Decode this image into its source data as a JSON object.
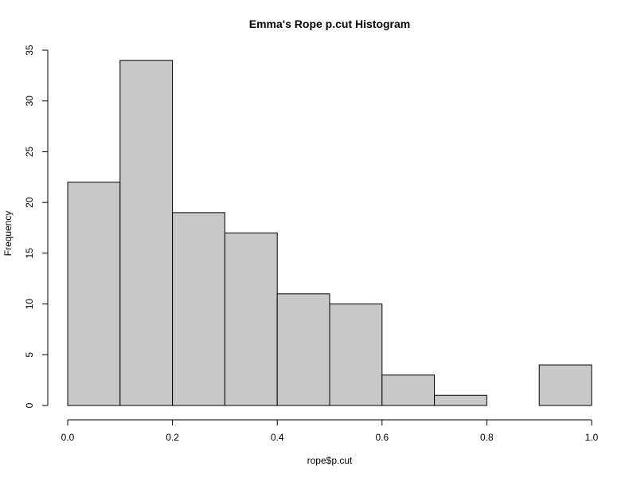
{
  "chart_data": {
    "type": "bar",
    "title": "Emma's Rope p.cut Histogram",
    "xlabel": "rope$p.cut",
    "ylabel": "Frequency",
    "bins": [
      {
        "start": 0.0,
        "end": 0.1,
        "count": 22
      },
      {
        "start": 0.1,
        "end": 0.2,
        "count": 34
      },
      {
        "start": 0.2,
        "end": 0.3,
        "count": 19
      },
      {
        "start": 0.3,
        "end": 0.4,
        "count": 17
      },
      {
        "start": 0.4,
        "end": 0.5,
        "count": 11
      },
      {
        "start": 0.5,
        "end": 0.6,
        "count": 10
      },
      {
        "start": 0.6,
        "end": 0.7,
        "count": 3
      },
      {
        "start": 0.7,
        "end": 0.8,
        "count": 1
      },
      {
        "start": 0.8,
        "end": 0.9,
        "count": 0
      },
      {
        "start": 0.9,
        "end": 1.0,
        "count": 4
      }
    ],
    "xlim": [
      0,
      1
    ],
    "ylim": [
      0,
      35
    ],
    "xticks": [
      "0.0",
      "0.2",
      "0.4",
      "0.6",
      "0.8",
      "1.0"
    ],
    "yticks": [
      "0",
      "5",
      "10",
      "15",
      "20",
      "25",
      "30",
      "35"
    ],
    "grid": false,
    "bar_color": "#c8c8c8"
  }
}
